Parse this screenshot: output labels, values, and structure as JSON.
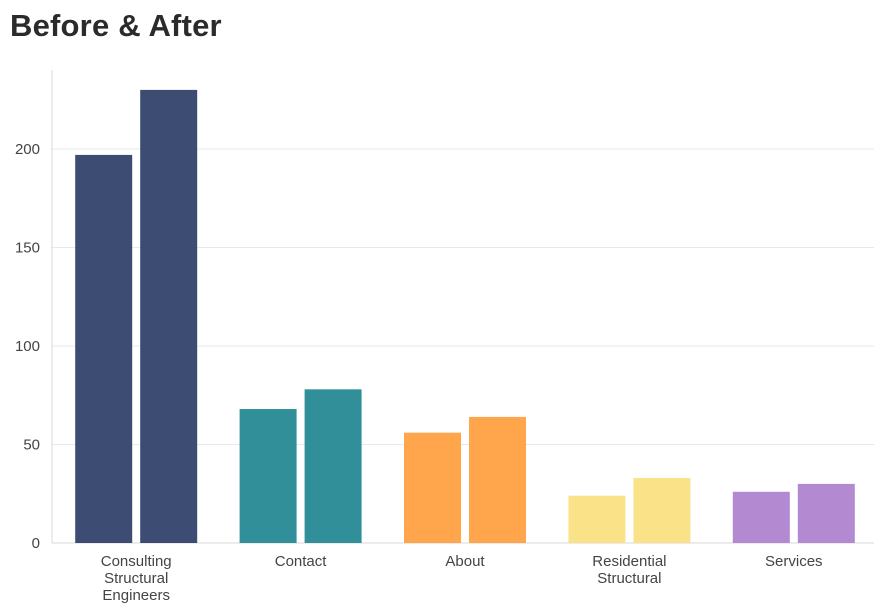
{
  "chart_data": {
    "type": "bar",
    "title": "Before & After",
    "xlabel": "",
    "ylabel": "",
    "ylim": [
      0,
      230
    ],
    "yticks": [
      0,
      50,
      100,
      150,
      200
    ],
    "grid": true,
    "legend": "none",
    "categories": [
      [
        "Consulting",
        "Structural",
        "Engineers"
      ],
      [
        "Contact"
      ],
      [
        "About"
      ],
      [
        "Residential",
        "Structural"
      ],
      [
        "Services"
      ]
    ],
    "colors": [
      "#2b3d66",
      "#1f8591",
      "#ff9d3c",
      "#f9e07e",
      "#ad7fce"
    ],
    "series": [
      {
        "values": [
          197,
          68,
          56,
          24,
          26
        ]
      },
      {
        "values": [
          230,
          78,
          64,
          33,
          30
        ]
      }
    ]
  }
}
